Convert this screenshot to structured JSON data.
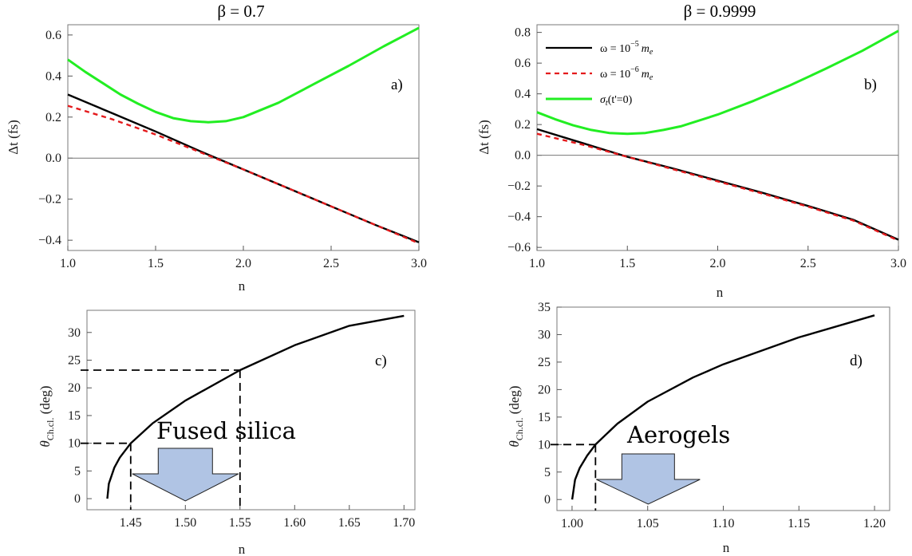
{
  "chart_data": [
    {
      "id": "a",
      "type": "line",
      "title": "β = 0.7",
      "panel_label": "a)",
      "xlabel": "n",
      "ylabel": "Δt (fs)",
      "xlim": [
        1.0,
        3.0
      ],
      "ylim": [
        -0.45,
        0.65
      ],
      "xticks": [
        1.0,
        1.5,
        2.0,
        2.5,
        3.0
      ],
      "xtick_labels": [
        "1.0",
        "1.5",
        "2.0",
        "2.5",
        "3.0"
      ],
      "yticks": [
        -0.4,
        -0.2,
        0.0,
        0.2,
        0.4,
        0.6
      ],
      "ytick_labels": [
        "−0.4",
        "−0.2",
        "0.0",
        "0.2",
        "0.4",
        "0.6"
      ],
      "zero_line": true,
      "series": [
        {
          "name": "ω = 10^-5 m_e",
          "color": "#000000",
          "dash": false,
          "x": [
            1.0,
            1.25,
            1.5,
            1.75,
            2.0,
            2.25,
            2.5,
            2.75,
            3.0
          ],
          "y": [
            0.31,
            0.22,
            0.13,
            0.035,
            -0.055,
            -0.145,
            -0.235,
            -0.325,
            -0.41
          ]
        },
        {
          "name": "ω = 10^-6 m_e",
          "color": "#e41a1c",
          "dash": true,
          "x": [
            1.0,
            1.25,
            1.5,
            1.75,
            2.0,
            2.25,
            2.5,
            2.75,
            3.0
          ],
          "y": [
            0.255,
            0.19,
            0.115,
            0.03,
            -0.055,
            -0.145,
            -0.235,
            -0.325,
            -0.415
          ]
        },
        {
          "name": "σ_t(t'=0)",
          "color": "#22ee22",
          "dash": false,
          "x": [
            1.0,
            1.1,
            1.2,
            1.3,
            1.4,
            1.5,
            1.6,
            1.7,
            1.8,
            1.9,
            2.0,
            2.2,
            2.4,
            2.6,
            2.8,
            3.0
          ],
          "y": [
            0.48,
            0.42,
            0.365,
            0.31,
            0.265,
            0.225,
            0.195,
            0.18,
            0.175,
            0.18,
            0.2,
            0.27,
            0.36,
            0.45,
            0.545,
            0.635
          ]
        }
      ]
    },
    {
      "id": "b",
      "type": "line",
      "title": "β = 0.9999",
      "panel_label": "b)",
      "xlabel": "n",
      "ylabel": "Δt (fs)",
      "xlim": [
        1.0,
        3.0
      ],
      "ylim": [
        -0.62,
        0.85
      ],
      "xticks": [
        1.0,
        1.5,
        2.0,
        2.5,
        3.0
      ],
      "xtick_labels": [
        "1.0",
        "1.5",
        "2.0",
        "2.5",
        "3.0"
      ],
      "yticks": [
        -0.6,
        -0.4,
        -0.2,
        0.0,
        0.2,
        0.4,
        0.6,
        0.8
      ],
      "ytick_labels": [
        "−0.6",
        "−0.4",
        "−0.2",
        "0.0",
        "0.2",
        "0.4",
        "0.6",
        "0.8"
      ],
      "zero_line": true,
      "legend": {
        "position": "top-left",
        "entries": [
          {
            "prefix": "ω = 10",
            "sup": "−5",
            "suffix": "m",
            "sub": "e",
            "color": "#000000",
            "dash": false
          },
          {
            "prefix": "ω = 10",
            "sup": "−6",
            "suffix": "m",
            "sub": "e",
            "color": "#e41a1c",
            "dash": true
          },
          {
            "prefix": "σ",
            "sub": "t",
            "suffix": "(t'=0)",
            "color": "#22ee22",
            "dash": false
          }
        ]
      },
      "series": [
        {
          "name": "ω = 10^-5 m_e",
          "color": "#000000",
          "dash": false,
          "x": [
            1.0,
            1.25,
            1.5,
            1.75,
            2.0,
            2.25,
            2.5,
            2.75,
            3.0
          ],
          "y": [
            0.17,
            0.08,
            -0.01,
            -0.085,
            -0.165,
            -0.245,
            -0.33,
            -0.42,
            -0.55
          ]
        },
        {
          "name": "ω = 10^-6 m_e",
          "color": "#e41a1c",
          "dash": true,
          "x": [
            1.0,
            1.25,
            1.5,
            1.75,
            2.0,
            2.25,
            2.5,
            2.75,
            3.0
          ],
          "y": [
            0.14,
            0.07,
            -0.01,
            -0.09,
            -0.17,
            -0.25,
            -0.335,
            -0.425,
            -0.555
          ]
        },
        {
          "name": "σ_t(t'=0)",
          "color": "#22ee22",
          "dash": false,
          "x": [
            1.0,
            1.1,
            1.2,
            1.3,
            1.4,
            1.5,
            1.6,
            1.7,
            1.8,
            2.0,
            2.2,
            2.4,
            2.6,
            2.8,
            3.0
          ],
          "y": [
            0.28,
            0.235,
            0.195,
            0.165,
            0.145,
            0.14,
            0.145,
            0.165,
            0.19,
            0.265,
            0.355,
            0.455,
            0.565,
            0.68,
            0.81
          ]
        }
      ]
    },
    {
      "id": "c",
      "type": "line",
      "title": "",
      "panel_label": "c)",
      "xlabel": "n",
      "ylabel_main": "θ",
      "ylabel_sub": "Ch.cl.",
      "ylabel_tail": " (deg)",
      "xlim": [
        1.41,
        1.71
      ],
      "ylim": [
        -2,
        34
      ],
      "xticks": [
        1.45,
        1.5,
        1.55,
        1.6,
        1.65,
        1.7
      ],
      "xtick_labels": [
        "1.45",
        "1.50",
        "1.55",
        "1.60",
        "1.65",
        "1.70"
      ],
      "yticks": [
        0,
        5,
        10,
        15,
        20,
        25,
        30
      ],
      "ytick_labels": [
        "0",
        "5",
        "10",
        "15",
        "20",
        "25",
        "30"
      ],
      "annotation": "Fused silica",
      "guides": [
        {
          "x": 1.45,
          "y": 10.0
        },
        {
          "x": 1.55,
          "y": 23.2
        }
      ],
      "arrow_range": [
        1.45,
        1.55
      ],
      "series": [
        {
          "name": "θ Ch.cl.",
          "color": "#000000",
          "dash": false,
          "x": [
            1.4286,
            1.43,
            1.435,
            1.44,
            1.45,
            1.47,
            1.5,
            1.55,
            1.6,
            1.65,
            1.7
          ],
          "y": [
            0,
            2.7,
            5.6,
            7.4,
            10.0,
            13.6,
            17.7,
            23.2,
            27.7,
            31.2,
            33.0
          ]
        }
      ]
    },
    {
      "id": "d",
      "type": "line",
      "title": "",
      "panel_label": "d)",
      "xlabel": "n",
      "ylabel_main": "θ",
      "ylabel_sub": "Ch.cl.",
      "ylabel_tail": " (deg)",
      "xlim": [
        0.99,
        1.21
      ],
      "ylim": [
        -2,
        35
      ],
      "xticks": [
        1.0,
        1.05,
        1.1,
        1.15,
        1.2
      ],
      "xtick_labels": [
        "1.00",
        "1.05",
        "1.10",
        "1.15",
        "1.20"
      ],
      "yticks": [
        0,
        5,
        10,
        15,
        20,
        25,
        30,
        35
      ],
      "ytick_labels": [
        "0",
        "5",
        "10",
        "15",
        "20",
        "25",
        "30",
        "35"
      ],
      "annotation": "Aerogels",
      "guides": [
        {
          "x": 1.0155,
          "y": 10.0
        }
      ],
      "arrow_range": [
        1.0155,
        1.0155
      ],
      "series": [
        {
          "name": "θ Ch.cl.",
          "color": "#000000",
          "dash": false,
          "x": [
            1.0001,
            1.002,
            1.005,
            1.01,
            1.0155,
            1.03,
            1.05,
            1.08,
            1.1,
            1.15,
            1.2
          ],
          "y": [
            0,
            3.6,
            5.7,
            8.0,
            10.0,
            13.8,
            17.8,
            22.2,
            24.6,
            29.5,
            33.5
          ]
        }
      ]
    }
  ]
}
